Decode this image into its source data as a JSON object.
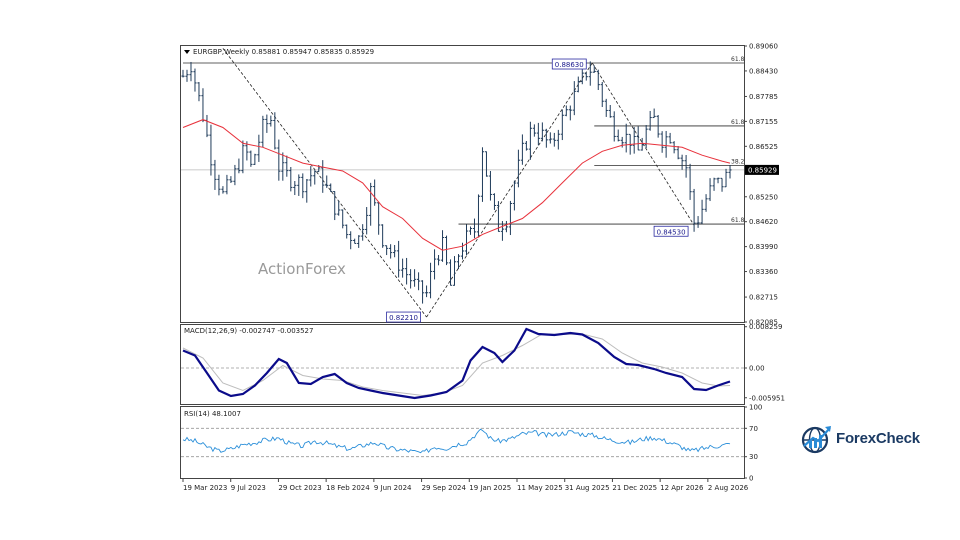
{
  "symbol_header": "EURGBP,Weekly  0.85881 0.85947 0.85835 0.85929",
  "watermark": "ActionForex",
  "brand": {
    "name": "ForexCheck",
    "logo_icon": "globe-chart-logo-icon",
    "color": "#1b3a63",
    "accent": "#2a8bd6"
  },
  "chart_data": [
    {
      "type": "candlestick",
      "title": "EURGBP,Weekly  0.85881 0.85947 0.85835 0.85929",
      "ylim": [
        0.82085,
        0.8906
      ],
      "y_ticks": [
        "0.89060",
        "0.88430",
        "0.87785",
        "0.87155",
        "0.86525",
        "0.85250",
        "0.84620",
        "0.83990",
        "0.83360",
        "0.82715",
        "0.82085"
      ],
      "current_price": "0.85929",
      "x_tick_labels": [
        "19 Mar 2023",
        "9 Jul 2023",
        "29 Oct 2023",
        "18 Feb 2024",
        "9 Jun 2024",
        "29 Sep 2024",
        "19 Jan 2025",
        "11 May 2025",
        "31 Aug 2025",
        "21 Dec 2025",
        "12 Apr 2026",
        "2 Aug 2026"
      ],
      "price_path": [
        [
          0,
          0.883
        ],
        [
          4,
          0.886
        ],
        [
          10,
          0.873
        ],
        [
          15,
          0.86
        ],
        [
          20,
          0.853
        ],
        [
          25,
          0.857
        ],
        [
          31,
          0.865
        ],
        [
          34,
          0.86
        ],
        [
          40,
          0.87
        ],
        [
          44,
          0.872
        ],
        [
          48,
          0.86
        ],
        [
          54,
          0.857
        ],
        [
          60,
          0.856
        ],
        [
          66,
          0.859
        ],
        [
          70,
          0.857
        ],
        [
          76,
          0.85
        ],
        [
          82,
          0.843
        ],
        [
          88,
          0.842
        ],
        [
          94,
          0.854
        ],
        [
          100,
          0.842
        ],
        [
          106,
          0.837
        ],
        [
          112,
          0.833
        ],
        [
          118,
          0.829
        ],
        [
          122,
          0.828
        ],
        [
          126,
          0.837
        ],
        [
          130,
          0.84
        ],
        [
          134,
          0.83
        ],
        [
          138,
          0.838
        ],
        [
          142,
          0.842
        ],
        [
          146,
          0.844
        ],
        [
          150,
          0.865
        ],
        [
          154,
          0.852
        ],
        [
          158,
          0.845
        ],
        [
          162,
          0.847
        ],
        [
          166,
          0.856
        ],
        [
          170,
          0.864
        ],
        [
          175,
          0.87
        ],
        [
          180,
          0.868
        ],
        [
          184,
          0.865
        ],
        [
          188,
          0.87
        ],
        [
          194,
          0.876
        ],
        [
          198,
          0.88
        ],
        [
          202,
          0.884
        ],
        [
          205,
          0.885
        ],
        [
          208,
          0.881
        ],
        [
          212,
          0.874
        ],
        [
          216,
          0.87
        ],
        [
          220,
          0.868
        ],
        [
          224,
          0.867
        ],
        [
          228,
          0.864
        ],
        [
          232,
          0.869
        ],
        [
          236,
          0.872
        ],
        [
          240,
          0.867
        ],
        [
          244,
          0.868
        ],
        [
          248,
          0.864
        ],
        [
          252,
          0.86
        ],
        [
          256,
          0.846
        ],
        [
          258,
          0.847
        ],
        [
          262,
          0.852
        ],
        [
          266,
          0.856
        ],
        [
          270,
          0.856
        ],
        [
          274,
          0.8593
        ]
      ],
      "moving_average": [
        [
          0,
          0.87
        ],
        [
          10,
          0.872
        ],
        [
          20,
          0.87
        ],
        [
          30,
          0.866
        ],
        [
          40,
          0.865
        ],
        [
          50,
          0.863
        ],
        [
          60,
          0.861
        ],
        [
          70,
          0.86
        ],
        [
          80,
          0.859
        ],
        [
          90,
          0.856
        ],
        [
          100,
          0.85
        ],
        [
          110,
          0.847
        ],
        [
          120,
          0.842
        ],
        [
          130,
          0.839
        ],
        [
          140,
          0.84
        ],
        [
          150,
          0.843
        ],
        [
          160,
          0.845
        ],
        [
          170,
          0.847
        ],
        [
          180,
          0.851
        ],
        [
          190,
          0.856
        ],
        [
          200,
          0.861
        ],
        [
          210,
          0.864
        ],
        [
          220,
          0.8655
        ],
        [
          230,
          0.866
        ],
        [
          240,
          0.8655
        ],
        [
          250,
          0.865
        ],
        [
          260,
          0.863
        ],
        [
          270,
          0.8615
        ],
        [
          274,
          0.861
        ]
      ],
      "annotations": {
        "swing_high": {
          "label": "0.88630",
          "x": 205,
          "y": 0.8863
        },
        "swing_low_1": {
          "label": "0.82210",
          "x": 122,
          "y": 0.8221
        },
        "swing_low_2": {
          "label": "0.84530",
          "x": 256,
          "y": 0.8453
        },
        "fib_levels": [
          {
            "label": "61.8",
            "y": 0.8863,
            "x_from": 0,
            "x_to": 280
          },
          {
            "label": "61.8",
            "y": 0.8704,
            "x_from": 206,
            "x_to": 280
          },
          {
            "label": "38.2",
            "y": 0.8604,
            "x_from": 206,
            "x_to": 280
          },
          {
            "label": "61.8",
            "y": 0.8456,
            "x_from": 138,
            "x_to": 280
          }
        ],
        "trendlines": [
          {
            "from": [
              20,
              0.89
            ],
            "to": [
              122,
              0.8221
            ]
          },
          {
            "from": [
              122,
              0.8221
            ],
            "to": [
              205,
              0.8863
            ]
          },
          {
            "from": [
              205,
              0.8863
            ],
            "to": [
              256,
              0.8453
            ]
          }
        ]
      }
    },
    {
      "type": "line",
      "title": "MACD(12,26,9) -0.002747 -0.003527",
      "ylim": [
        -0.0072,
        0.0086
      ],
      "y_ticks": [
        "0.008259",
        "0.00",
        "-0.005951"
      ],
      "series": [
        {
          "name": "MACD",
          "values": [
            [
              0,
              0.0035
            ],
            [
              6,
              0.0025
            ],
            [
              12,
              -0.001
            ],
            [
              18,
              -0.0045
            ],
            [
              24,
              -0.0056
            ],
            [
              30,
              -0.0052
            ],
            [
              36,
              -0.0035
            ],
            [
              42,
              -0.001
            ],
            [
              48,
              0.0018
            ],
            [
              52,
              0.001
            ],
            [
              58,
              -0.003
            ],
            [
              64,
              -0.0032
            ],
            [
              70,
              -0.0018
            ],
            [
              76,
              -0.0012
            ],
            [
              82,
              -0.003
            ],
            [
              88,
              -0.004
            ],
            [
              94,
              -0.0045
            ],
            [
              100,
              -0.005
            ],
            [
              108,
              -0.0055
            ],
            [
              116,
              -0.006
            ],
            [
              124,
              -0.0055
            ],
            [
              132,
              -0.0048
            ],
            [
              140,
              -0.0025
            ],
            [
              144,
              0.0015
            ],
            [
              150,
              0.0042
            ],
            [
              156,
              0.003
            ],
            [
              160,
              0.0012
            ],
            [
              166,
              0.0035
            ],
            [
              172,
              0.0078
            ],
            [
              178,
              0.0068
            ],
            [
              186,
              0.0066
            ],
            [
              194,
              0.007
            ],
            [
              200,
              0.0067
            ],
            [
              208,
              0.005
            ],
            [
              216,
              0.0022
            ],
            [
              222,
              0.0008
            ],
            [
              228,
              0.0006
            ],
            [
              236,
              -0.0002
            ],
            [
              242,
              -0.001
            ],
            [
              250,
              -0.0018
            ],
            [
              256,
              -0.0042
            ],
            [
              262,
              -0.0044
            ],
            [
              268,
              -0.0035
            ],
            [
              274,
              -0.0027
            ]
          ]
        },
        {
          "name": "Signal",
          "values": [
            [
              0,
              0.004
            ],
            [
              10,
              0.002
            ],
            [
              20,
              -0.003
            ],
            [
              30,
              -0.0045
            ],
            [
              40,
              -0.0025
            ],
            [
              50,
              0.0005
            ],
            [
              60,
              -0.0015
            ],
            [
              70,
              -0.0022
            ],
            [
              80,
              -0.0025
            ],
            [
              90,
              -0.0038
            ],
            [
              100,
              -0.0045
            ],
            [
              110,
              -0.005
            ],
            [
              120,
              -0.0055
            ],
            [
              130,
              -0.005
            ],
            [
              140,
              -0.0035
            ],
            [
              150,
              0.001
            ],
            [
              160,
              0.0025
            ],
            [
              170,
              0.0045
            ],
            [
              180,
              0.0068
            ],
            [
              190,
              0.0067
            ],
            [
              200,
              0.0068
            ],
            [
              210,
              0.0058
            ],
            [
              220,
              0.003
            ],
            [
              230,
              0.001
            ],
            [
              240,
              0.0002
            ],
            [
              250,
              -0.001
            ],
            [
              260,
              -0.003
            ],
            [
              268,
              -0.0036
            ],
            [
              274,
              -0.0035
            ]
          ]
        }
      ]
    },
    {
      "type": "line",
      "title": "RSI(14) 48.1007",
      "ylim": [
        0,
        100
      ],
      "y_ticks": [
        "100",
        "70",
        "30",
        "0"
      ],
      "series": [
        {
          "name": "RSI",
          "values": [
            [
              0,
              55
            ],
            [
              6,
              52
            ],
            [
              12,
              44
            ],
            [
              18,
              38
            ],
            [
              24,
              41
            ],
            [
              30,
              47
            ],
            [
              36,
              50
            ],
            [
              42,
              54
            ],
            [
              48,
              56
            ],
            [
              54,
              48
            ],
            [
              60,
              45
            ],
            [
              66,
              52
            ],
            [
              72,
              49
            ],
            [
              78,
              44
            ],
            [
              84,
              41
            ],
            [
              90,
              46
            ],
            [
              96,
              50
            ],
            [
              102,
              43
            ],
            [
              108,
              40
            ],
            [
              114,
              38
            ],
            [
              120,
              35
            ],
            [
              126,
              44
            ],
            [
              132,
              42
            ],
            [
              138,
              48
            ],
            [
              142,
              50
            ],
            [
              146,
              60
            ],
            [
              150,
              68
            ],
            [
              154,
              56
            ],
            [
              158,
              52
            ],
            [
              164,
              55
            ],
            [
              170,
              62
            ],
            [
              176,
              64
            ],
            [
              182,
              60
            ],
            [
              188,
              62
            ],
            [
              194,
              65
            ],
            [
              200,
              62
            ],
            [
              206,
              60
            ],
            [
              212,
              55
            ],
            [
              218,
              52
            ],
            [
              224,
              50
            ],
            [
              230,
              55
            ],
            [
              236,
              57
            ],
            [
              242,
              52
            ],
            [
              248,
              46
            ],
            [
              254,
              38
            ],
            [
              258,
              40
            ],
            [
              264,
              44
            ],
            [
              270,
              46
            ],
            [
              274,
              48.1
            ]
          ]
        }
      ]
    }
  ]
}
